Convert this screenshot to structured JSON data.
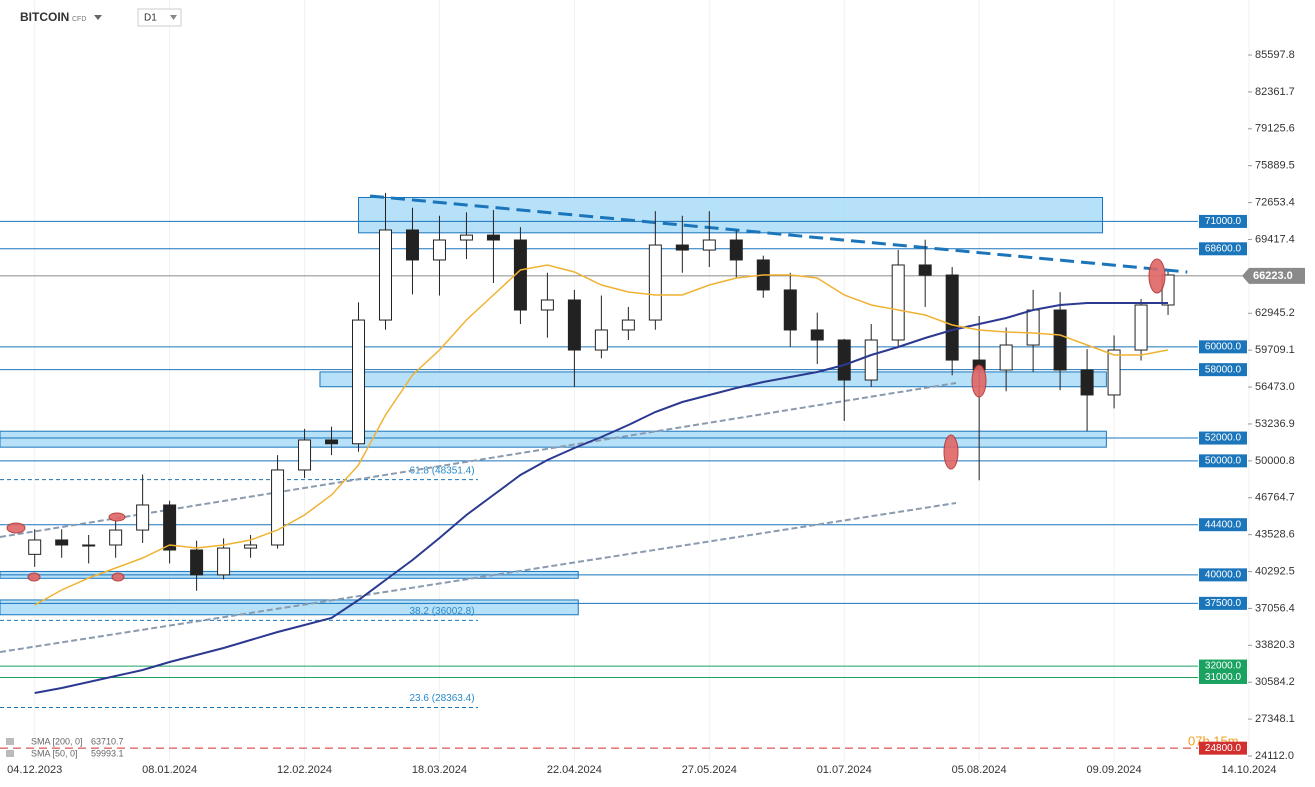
{
  "chart_data": {
    "type": "candlestick",
    "symbol": "BITCOIN",
    "instrument_type": "CFD",
    "timeframe": "D1",
    "countdown": "07h 15m",
    "x": [
      "04.12.2023",
      "11.12.2023",
      "18.12.2023",
      "25.12.2023",
      "01.01.2024",
      "08.01.2024",
      "15.01.2024",
      "22.01.2024",
      "29.01.2024",
      "05.02.2024",
      "12.02.2024",
      "19.02.2024",
      "26.02.2024",
      "04.03.2024",
      "11.03.2024",
      "18.03.2024",
      "25.03.2024",
      "01.04.2024",
      "08.04.2024",
      "15.04.2024",
      "22.04.2024",
      "29.04.2024",
      "06.05.2024",
      "13.05.2024",
      "20.05.2024",
      "27.05.2024",
      "03.06.2024",
      "10.06.2024",
      "17.06.2024",
      "24.06.2024",
      "01.07.2024",
      "08.07.2024",
      "15.07.2024",
      "22.07.2024",
      "29.07.2024",
      "05.08.2024",
      "12.08.2024",
      "19.08.2024",
      "26.08.2024",
      "02.09.2024",
      "09.09.2024",
      "16.09.2024",
      "23.09.2024"
    ],
    "open": [
      41800,
      43060,
      42620,
      42620,
      43930,
      46130,
      42180,
      40000,
      42350,
      42620,
      49200,
      51830,
      51500,
      62350,
      70250,
      67620,
      69370,
      69800,
      69370,
      63230,
      64110,
      59720,
      61480,
      62350,
      68930,
      68490,
      69370,
      67620,
      64990,
      61480,
      60600,
      57090,
      60600,
      67180,
      66300,
      58840,
      57970,
      60160,
      63230,
      57970,
      55780,
      59720,
      63670
    ],
    "high": [
      44000,
      44000,
      43500,
      44800,
      48800,
      46500,
      43000,
      43200,
      43500,
      50500,
      52800,
      53000,
      63900,
      73500,
      72200,
      71500,
      71800,
      72000,
      70500,
      66500,
      65000,
      64500,
      63500,
      71900,
      71500,
      71900,
      70200,
      68000,
      66500,
      63000,
      60700,
      62000,
      68500,
      69400,
      67000,
      62700,
      61700,
      65000,
      64800,
      59800,
      61000,
      64200,
      66600
    ],
    "low": [
      40700,
      41500,
      41000,
      41500,
      42800,
      41000,
      38600,
      39600,
      41500,
      42300,
      48500,
      50500,
      50800,
      61500,
      64600,
      64500,
      67700,
      65600,
      62000,
      60800,
      56500,
      59000,
      60600,
      61500,
      66500,
      67000,
      66000,
      64300,
      60000,
      58500,
      53500,
      56500,
      60000,
      63500,
      57500,
      48300,
      56100,
      57800,
      56200,
      52600,
      54600,
      58800,
      62800
    ],
    "close": [
      43060,
      42620,
      42620,
      43930,
      46130,
      42180,
      40000,
      42350,
      42620,
      49200,
      51830,
      51500,
      62350,
      70250,
      67620,
      69370,
      69800,
      69370,
      63230,
      64110,
      59720,
      61480,
      62350,
      68930,
      68490,
      69370,
      67620,
      64990,
      61480,
      60600,
      57090,
      60600,
      67180,
      66300,
      58840,
      57970,
      60160,
      63230,
      57970,
      55780,
      59720,
      63670,
      66300
    ],
    "series": [
      {
        "name": "SMA [200, 0]",
        "last_value": 63710.7,
        "color": "#2b3990",
        "values": [
          29639,
          30078,
          30604,
          31130,
          31656,
          32358,
          32972,
          33586,
          34288,
          34989,
          35603,
          36217,
          37796,
          39550,
          41304,
          43234,
          45251,
          47006,
          48760,
          50075,
          51128,
          52093,
          53145,
          54285,
          55163,
          55777,
          56391,
          56917,
          57355,
          57794,
          58408,
          59285,
          59987,
          60776,
          61478,
          62004,
          62530,
          63232,
          63670,
          63846,
          63846,
          63846,
          63846
        ]
      },
      {
        "name": "SMA [50, 0]",
        "last_value": 59993.1,
        "color": "#f0b232",
        "values": [
          37357,
          38673,
          39726,
          40603,
          41480,
          42620,
          42357,
          42620,
          43059,
          43936,
          45251,
          47006,
          49637,
          54022,
          57531,
          59723,
          62355,
          64548,
          66740,
          67179,
          66565,
          65425,
          64811,
          64548,
          64548,
          65425,
          66039,
          66302,
          66302,
          66039,
          64548,
          63670,
          63232,
          62793,
          61916,
          61478,
          61302,
          61215,
          61039,
          60162,
          59285,
          59285,
          59723
        ]
      }
    ],
    "levels": [
      {
        "value": 71000,
        "label": "71000.0",
        "color": "#1b75bb"
      },
      {
        "value": 68600,
        "label": "68600.0",
        "color": "#1b75bb"
      },
      {
        "value": 60000,
        "label": "60000.0",
        "color": "#1b75bb"
      },
      {
        "value": 58000,
        "label": "58000.0",
        "color": "#1b75bb"
      },
      {
        "value": 52000,
        "label": "52000.0",
        "color": "#1b75bb"
      },
      {
        "value": 50000,
        "label": "50000.0",
        "color": "#1b75bb"
      },
      {
        "value": 44400,
        "label": "44400.0",
        "color": "#1b75bb"
      },
      {
        "value": 40000,
        "label": "40000.0",
        "color": "#1b75bb"
      },
      {
        "value": 37500,
        "label": "37500.0",
        "color": "#1b75bb"
      },
      {
        "value": 32000,
        "label": "32000.0",
        "color": "#1aa260"
      },
      {
        "value": 31000,
        "label": "31000.0",
        "color": "#1aa260"
      },
      {
        "value": 24800,
        "label": "24800.0",
        "color": "#d32f2f"
      }
    ],
    "zones": [
      {
        "from": 70000,
        "to": 73100,
        "start": "26.02.2024",
        "end": "06.09.2024"
      },
      {
        "from": 56500,
        "to": 57800,
        "start": "16.02.2024",
        "end": "07.09.2024"
      },
      {
        "from": 51200,
        "to": 52600,
        "start": "25.11.2023",
        "end": "07.09.2024"
      },
      {
        "from": 39700,
        "to": 40300,
        "start": "25.11.2023",
        "end": "23.04.2024"
      },
      {
        "from": 36500,
        "to": 37800,
        "start": "25.11.2023",
        "end": "23.04.2024"
      }
    ],
    "fib_levels": [
      {
        "value": 48351.4,
        "label": "61.8 (48351.4)"
      },
      {
        "value": 36002.8,
        "label": "38.2 (36002.8)"
      },
      {
        "value": 28363.4,
        "label": "23.6 (28363.4)"
      }
    ],
    "fib_end": "28.03.2024",
    "trendlines": [
      {
        "start": "29.02.2024",
        "start_value": 73231,
        "end": "28.09.2024",
        "end_value": 66565,
        "color": "#1b75bb",
        "width": 3
      },
      {
        "start": "25.11.2023",
        "start_value": 33234,
        "end": "30.07.2024",
        "end_value": 46304,
        "color": "#8a9bb0",
        "width": 2
      },
      {
        "start": "25.11.2023",
        "start_value": 43322,
        "end": "30.07.2024",
        "end_value": 56829,
        "color": "#8a9bb0",
        "width": 2
      }
    ],
    "current_price": {
      "value": 66223,
      "label": "66223.0"
    },
    "xlim": [
      "25.11.2023",
      "14.10.2024"
    ],
    "xticks": [
      "04.12.2023",
      "08.01.2024",
      "12.02.2024",
      "18.03.2024",
      "22.04.2024",
      "27.05.2024",
      "01.07.2024",
      "05.08.2024",
      "09.09.2024",
      "14.10.2024"
    ],
    "ylim": [
      23586,
      90422
    ],
    "yticks": [
      85597.8,
      82361.7,
      79125.6,
      75889.5,
      72653.4,
      69417.4,
      62945.2,
      59709.1,
      {
        "value": 56473,
        "label": "56473.0"
      },
      53236.9,
      50000.8,
      46764.7,
      43528.6,
      40292.5,
      37056.4,
      33820.3,
      30584.2,
      27348.1,
      {
        "value": 24112,
        "label": "24112.0"
      }
    ],
    "grid": "x"
  }
}
